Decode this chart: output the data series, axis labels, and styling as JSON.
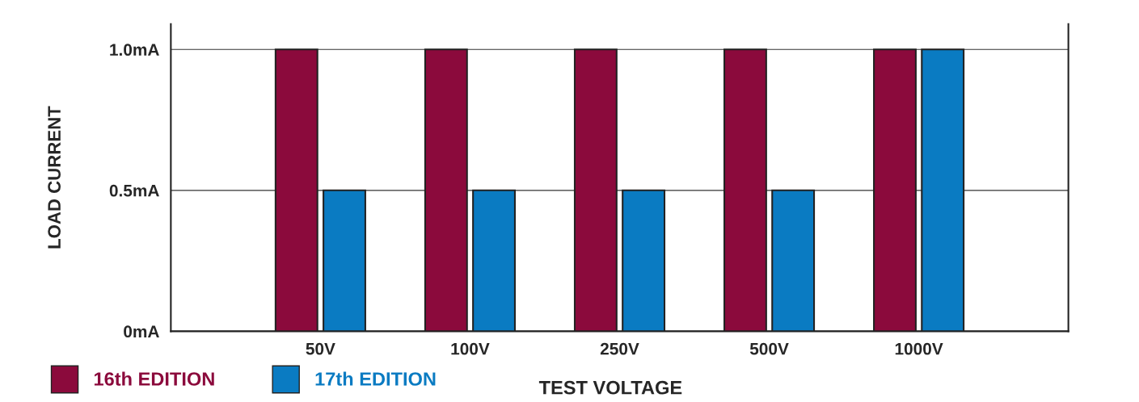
{
  "chart_data": {
    "type": "bar",
    "ylabel": "LOAD CURRENT",
    "xlabel": "TEST VOLTAGE",
    "categories": [
      "50V",
      "100V",
      "250V",
      "500V",
      "1000V"
    ],
    "series": [
      {
        "name": "16th EDITION",
        "color": "#8b0a3c",
        "values": [
          1.0,
          1.0,
          1.0,
          1.0,
          1.0
        ]
      },
      {
        "name": "17th EDITION",
        "color": "#0a7bc2",
        "values": [
          0.5,
          0.5,
          0.5,
          0.5,
          1.0
        ]
      }
    ],
    "ylim": [
      0,
      1.09
    ],
    "yticks": [
      {
        "value": 0,
        "label": "0mA"
      },
      {
        "value": 0.5,
        "label": "0.5mA"
      },
      {
        "value": 1.0,
        "label": "1.0mA"
      }
    ],
    "grid": "y",
    "legend": "bottom left"
  }
}
